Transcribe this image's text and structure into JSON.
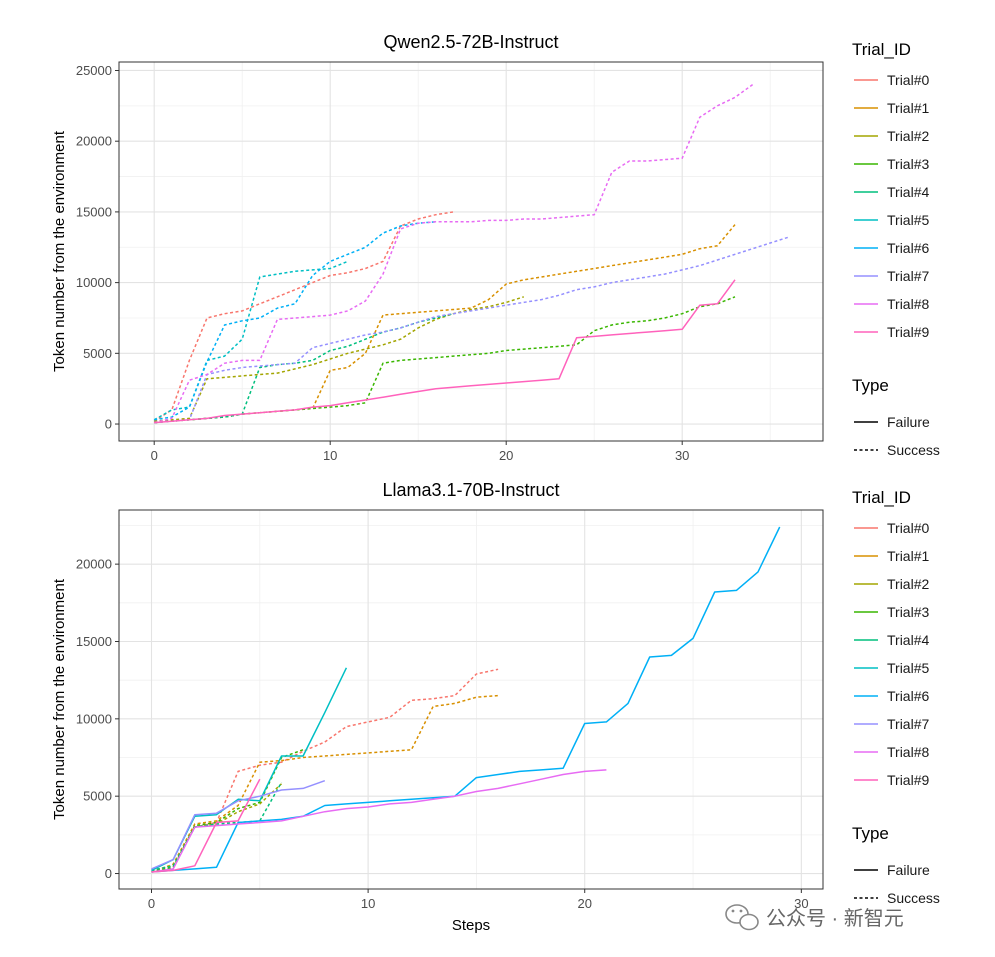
{
  "chart_data": [
    {
      "type": "line",
      "title": "Qwen2.5-72B-Instruct",
      "xlabel": "",
      "ylabel": "Token number from the environment",
      "xlim": [
        -2,
        38
      ],
      "ylim": [
        -1200,
        25600
      ],
      "xticks": [
        0,
        10,
        20,
        30
      ],
      "yticks": [
        0,
        5000,
        10000,
        15000,
        20000,
        25000
      ],
      "legend": {
        "title": "Trial_ID",
        "items": [
          "Trial#0",
          "Trial#1",
          "Trial#2",
          "Trial#3",
          "Trial#4",
          "Trial#5",
          "Trial#6",
          "Trial#7",
          "Trial#8",
          "Trial#9"
        ]
      },
      "type_legend": {
        "title": "Type",
        "items": [
          "Failure",
          "Success"
        ]
      },
      "series": [
        {
          "name": "Trial#0",
          "type": "Success",
          "color": "#F8766D",
          "x": [
            0,
            1,
            2,
            3,
            4,
            5,
            6,
            7,
            8,
            9,
            10,
            11,
            12,
            13,
            14,
            15,
            16,
            17
          ],
          "y": [
            200,
            1000,
            4500,
            7500,
            7800,
            8000,
            8500,
            9000,
            9500,
            10000,
            10500,
            10700,
            11000,
            11500,
            14000,
            14500,
            14800,
            15000
          ]
        },
        {
          "name": "Trial#1",
          "type": "Success",
          "color": "#D89000",
          "x": [
            0,
            1,
            2,
            3,
            4,
            5,
            6,
            7,
            8,
            9,
            10,
            11,
            12,
            13,
            14,
            15,
            16,
            17,
            18,
            19,
            20,
            21,
            22,
            23,
            24,
            25,
            26,
            27,
            28,
            29,
            30,
            31,
            32,
            33
          ],
          "y": [
            100,
            200,
            300,
            400,
            500,
            700,
            800,
            900,
            1000,
            1100,
            3800,
            4000,
            5000,
            7700,
            7800,
            7900,
            8000,
            8100,
            8200,
            8800,
            9900,
            10200,
            10400,
            10600,
            10800,
            11000,
            11200,
            11400,
            11600,
            11800,
            12000,
            12400,
            12600,
            14100
          ]
        },
        {
          "name": "Trial#2",
          "type": "Success",
          "color": "#A3A500",
          "x": [
            0,
            1,
            2,
            3,
            4,
            5,
            6,
            7,
            8,
            9,
            10,
            11,
            12,
            13,
            14,
            15,
            16,
            17,
            18,
            19,
            20,
            21
          ],
          "y": [
            200,
            300,
            400,
            3200,
            3300,
            3400,
            3500,
            3600,
            3900,
            4200,
            4600,
            5000,
            5300,
            5600,
            6000,
            6800,
            7400,
            7800,
            8100,
            8300,
            8600,
            9000
          ]
        },
        {
          "name": "Trial#3",
          "type": "Success",
          "color": "#39B600",
          "x": [
            0,
            1,
            2,
            3,
            4,
            5,
            6,
            7,
            8,
            9,
            10,
            11,
            12,
            13,
            14,
            15,
            16,
            17,
            18,
            19,
            20,
            21,
            22,
            23,
            24,
            25,
            26,
            27,
            28,
            29,
            30,
            31,
            32,
            33
          ],
          "y": [
            100,
            200,
            300,
            400,
            500,
            700,
            800,
            900,
            1000,
            1100,
            1200,
            1300,
            1500,
            4300,
            4500,
            4600,
            4700,
            4800,
            4900,
            5000,
            5200,
            5300,
            5400,
            5500,
            5600,
            6600,
            7000,
            7200,
            7300,
            7500,
            7800,
            8300,
            8500,
            9000
          ]
        },
        {
          "name": "Trial#4",
          "type": "Success",
          "color": "#00BF7D",
          "x": [
            0,
            1,
            2,
            3,
            4,
            5,
            6,
            7,
            8,
            9,
            10,
            11,
            12,
            13,
            14,
            15,
            16,
            17
          ],
          "y": [
            100,
            200,
            300,
            400,
            500,
            700,
            4000,
            4200,
            4300,
            4500,
            5200,
            5500,
            6000,
            6500,
            6800,
            7200,
            7500,
            7800
          ]
        },
        {
          "name": "Trial#5",
          "type": "Success",
          "color": "#00BFC4",
          "x": [
            0,
            1,
            2,
            3,
            4,
            5,
            6,
            7,
            8,
            9,
            10,
            11
          ],
          "y": [
            300,
            1000,
            1200,
            4500,
            4800,
            6000,
            10400,
            10600,
            10800,
            10900,
            11000,
            11500
          ]
        },
        {
          "name": "Trial#6",
          "type": "Success",
          "color": "#00B0F6",
          "x": [
            0,
            1,
            2,
            3,
            4,
            5,
            6,
            7,
            8,
            9,
            10,
            11,
            12,
            13,
            14,
            15,
            16
          ],
          "y": [
            300,
            500,
            1200,
            4400,
            7000,
            7300,
            7500,
            8200,
            8500,
            10500,
            11500,
            12000,
            12500,
            13500,
            14000,
            14200,
            14300
          ]
        },
        {
          "name": "Trial#7",
          "type": "Success",
          "color": "#9590FF",
          "x": [
            0,
            1,
            2,
            3,
            4,
            5,
            6,
            7,
            8,
            9,
            10,
            11,
            12,
            13,
            14,
            15,
            16,
            17,
            18,
            19,
            20,
            21,
            22,
            23,
            24,
            25,
            26,
            27,
            28,
            29,
            30,
            31,
            32,
            33,
            34,
            35,
            36
          ],
          "y": [
            100,
            200,
            300,
            3500,
            3800,
            4000,
            4100,
            4200,
            4300,
            5400,
            5700,
            6000,
            6300,
            6500,
            6800,
            7200,
            7600,
            7800,
            8000,
            8200,
            8400,
            8600,
            8800,
            9100,
            9500,
            9700,
            10000,
            10200,
            10400,
            10600,
            10900,
            11200,
            11600,
            12000,
            12400,
            12800,
            13200
          ]
        },
        {
          "name": "Trial#8",
          "type": "Success",
          "color": "#E76BF3",
          "x": [
            0,
            1,
            2,
            3,
            4,
            5,
            6,
            7,
            8,
            9,
            10,
            11,
            12,
            13,
            14,
            15,
            16,
            17,
            18,
            19,
            20,
            21,
            22,
            23,
            24,
            25,
            26,
            27,
            28,
            29,
            30,
            31,
            32,
            33,
            34
          ],
          "y": [
            100,
            400,
            3100,
            3500,
            4300,
            4500,
            4500,
            7400,
            7500,
            7600,
            7700,
            8000,
            8700,
            10600,
            13800,
            14200,
            14300,
            14300,
            14300,
            14400,
            14400,
            14500,
            14500,
            14600,
            14700,
            14800,
            17800,
            18600,
            18600,
            18700,
            18800,
            21700,
            22500,
            23100,
            24000
          ]
        },
        {
          "name": "Trial#9",
          "type": "Failure",
          "color": "#FF62BC",
          "x": [
            0,
            1,
            2,
            3,
            4,
            5,
            6,
            7,
            8,
            9,
            10,
            11,
            12,
            13,
            14,
            15,
            16,
            17,
            18,
            19,
            20,
            21,
            22,
            23,
            24,
            25,
            26,
            27,
            28,
            29,
            30,
            31,
            32,
            33
          ],
          "y": [
            100,
            200,
            300,
            400,
            600,
            700,
            800,
            900,
            1000,
            1200,
            1300,
            1500,
            1700,
            1900,
            2100,
            2300,
            2500,
            2600,
            2700,
            2800,
            2900,
            3000,
            3100,
            3200,
            6100,
            6200,
            6300,
            6400,
            6500,
            6600,
            6700,
            8400,
            8500,
            10200
          ]
        }
      ]
    },
    {
      "type": "line",
      "title": "Llama3.1-70B-Instruct",
      "xlabel": "Steps",
      "ylabel": "Token number from the environment",
      "xlim": [
        -1.5,
        31
      ],
      "ylim": [
        -1000,
        23500
      ],
      "xticks": [
        0,
        10,
        20,
        30
      ],
      "yticks": [
        0,
        5000,
        10000,
        15000,
        20000
      ],
      "legend": {
        "title": "Trial_ID",
        "items": [
          "Trial#0",
          "Trial#1",
          "Trial#2",
          "Trial#3",
          "Trial#4",
          "Trial#5",
          "Trial#6",
          "Trial#7",
          "Trial#8",
          "Trial#9"
        ]
      },
      "type_legend": {
        "title": "Type",
        "items": [
          "Failure",
          "Success"
        ]
      },
      "series": [
        {
          "name": "Trial#0",
          "type": "Success",
          "color": "#F8766D",
          "x": [
            0,
            1,
            2,
            3,
            4,
            5,
            6,
            7,
            8,
            9,
            10,
            11,
            12,
            13,
            14,
            15,
            16
          ],
          "y": [
            200,
            500,
            3000,
            3300,
            6600,
            7000,
            7200,
            7900,
            8500,
            9500,
            9800,
            10100,
            11200,
            11300,
            11500,
            12900,
            13200
          ]
        },
        {
          "name": "Trial#1",
          "type": "Success",
          "color": "#D89000",
          "x": [
            0,
            1,
            2,
            3,
            4,
            5,
            6,
            7,
            8,
            9,
            10,
            11,
            12,
            13,
            14,
            15,
            16
          ],
          "y": [
            100,
            600,
            3200,
            3400,
            4400,
            7200,
            7300,
            7500,
            7600,
            7700,
            7800,
            7900,
            8000,
            10800,
            11000,
            11400,
            11500
          ]
        },
        {
          "name": "Trial#2",
          "type": "Success",
          "color": "#A3A500",
          "x": [
            0,
            1,
            2,
            3,
            4,
            5,
            6
          ],
          "y": [
            100,
            400,
            3000,
            3200,
            4000,
            4500,
            5800
          ]
        },
        {
          "name": "Trial#3",
          "type": "Success",
          "color": "#39B600",
          "x": [
            0,
            1,
            2,
            3,
            4,
            5,
            6,
            7
          ],
          "y": [
            100,
            400,
            3100,
            3300,
            4200,
            4600,
            7500,
            8000
          ]
        },
        {
          "name": "Trial#4",
          "type": "Success",
          "color": "#00BF7D",
          "x": [
            0,
            1,
            2,
            3,
            4,
            5,
            6
          ],
          "y": [
            200,
            500,
            3000,
            3200,
            3300,
            3400,
            5900
          ]
        },
        {
          "name": "Trial#5",
          "type": "Failure",
          "color": "#00BFC4",
          "x": [
            0,
            1,
            2,
            3,
            4,
            5,
            6,
            7,
            8,
            9
          ],
          "y": [
            200,
            900,
            3700,
            3800,
            4800,
            4700,
            7600,
            7600,
            10400,
            13300
          ]
        },
        {
          "name": "Trial#6",
          "type": "Failure",
          "color": "#00B0F6",
          "x": [
            0,
            1,
            2,
            3,
            4,
            5,
            6,
            7,
            8,
            9,
            10,
            11,
            12,
            13,
            14,
            15,
            16,
            17,
            18,
            19,
            20,
            21,
            22,
            23,
            24,
            25,
            26,
            27,
            28,
            29
          ],
          "y": [
            100,
            200,
            300,
            400,
            3300,
            3400,
            3500,
            3700,
            4400,
            4500,
            4600,
            4700,
            4800,
            4900,
            5000,
            6200,
            6400,
            6600,
            6700,
            6800,
            9700,
            9800,
            11000,
            14000,
            14100,
            15200,
            18200,
            18300,
            19500,
            22400
          ]
        },
        {
          "name": "Trial#7",
          "type": "Failure",
          "color": "#9590FF",
          "x": [
            0,
            1,
            2,
            3,
            4,
            5,
            6,
            7,
            8
          ],
          "y": [
            300,
            900,
            3800,
            3900,
            4700,
            5000,
            5400,
            5500,
            6000
          ]
        },
        {
          "name": "Trial#8",
          "type": "Failure",
          "color": "#E76BF3",
          "x": [
            0,
            1,
            2,
            3,
            4,
            5,
            6,
            7,
            8,
            9,
            10,
            11,
            12,
            13,
            14,
            15,
            16,
            17,
            18,
            19,
            20,
            21
          ],
          "y": [
            100,
            300,
            3000,
            3100,
            3200,
            3300,
            3400,
            3700,
            4000,
            4200,
            4300,
            4500,
            4600,
            4800,
            5000,
            5300,
            5500,
            5800,
            6100,
            6400,
            6600,
            6700
          ]
        },
        {
          "name": "Trial#9",
          "type": "Failure",
          "color": "#FF62BC",
          "x": [
            0,
            1,
            2,
            3,
            4,
            5
          ],
          "y": [
            100,
            200,
            500,
            3300,
            3400,
            6100
          ]
        }
      ]
    }
  ],
  "watermark": {
    "text": "公众号 · 新智元",
    "icon": "wechat-icon"
  }
}
